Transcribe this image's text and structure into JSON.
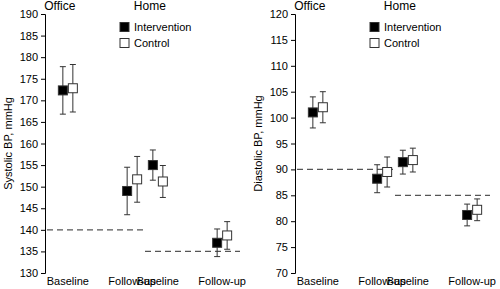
{
  "chart_data": [
    {
      "type": "scatter",
      "y_label": "Systolic BP, mmHg",
      "ylim": [
        130,
        190
      ],
      "yticks": [
        130,
        135,
        140,
        145,
        150,
        155,
        160,
        165,
        170,
        175,
        180,
        185,
        190
      ],
      "categories": [
        "Baseline",
        "Follow-up",
        "Baseline",
        "Follow-up"
      ],
      "groups": [
        {
          "label": "Office",
          "reference_line": 140
        },
        {
          "label": "Home",
          "reference_line": 135
        }
      ],
      "legend": "upper center",
      "series": [
        {
          "name": "Intervention",
          "color": "#000000",
          "marker": "square",
          "values": [
            172.3,
            149,
            155,
            137
          ],
          "errors": [
            5.5,
            5.5,
            3.5,
            3.2
          ]
        },
        {
          "name": "Control",
          "color": "#ffffff",
          "marker": "square",
          "values": [
            172.8,
            151.7,
            151.2,
            138.7
          ],
          "errors": [
            5.5,
            5.3,
            3.7,
            3.2
          ]
        }
      ]
    },
    {
      "type": "scatter",
      "y_label": "Diastolic BP, mmHg",
      "ylim": [
        70,
        120
      ],
      "yticks": [
        70,
        75,
        80,
        85,
        90,
        95,
        100,
        105,
        110,
        115,
        120
      ],
      "categories": [
        "Baseline",
        "Follow-up",
        "Baseline",
        "Follow-up"
      ],
      "groups": [
        {
          "label": "Office",
          "reference_line": 90
        },
        {
          "label": "Home",
          "reference_line": 85
        }
      ],
      "legend": "upper center",
      "series": [
        {
          "name": "Intervention",
          "color": "#000000",
          "marker": "square",
          "values": [
            101,
            88.2,
            91.4,
            81.2
          ],
          "errors": [
            3,
            2.7,
            2.3,
            2.1
          ]
        },
        {
          "name": "Control",
          "color": "#ffffff",
          "marker": "square",
          "values": [
            102,
            89.5,
            91.8,
            82.2
          ],
          "errors": [
            3,
            2.9,
            2.3,
            2.1
          ]
        }
      ]
    }
  ]
}
